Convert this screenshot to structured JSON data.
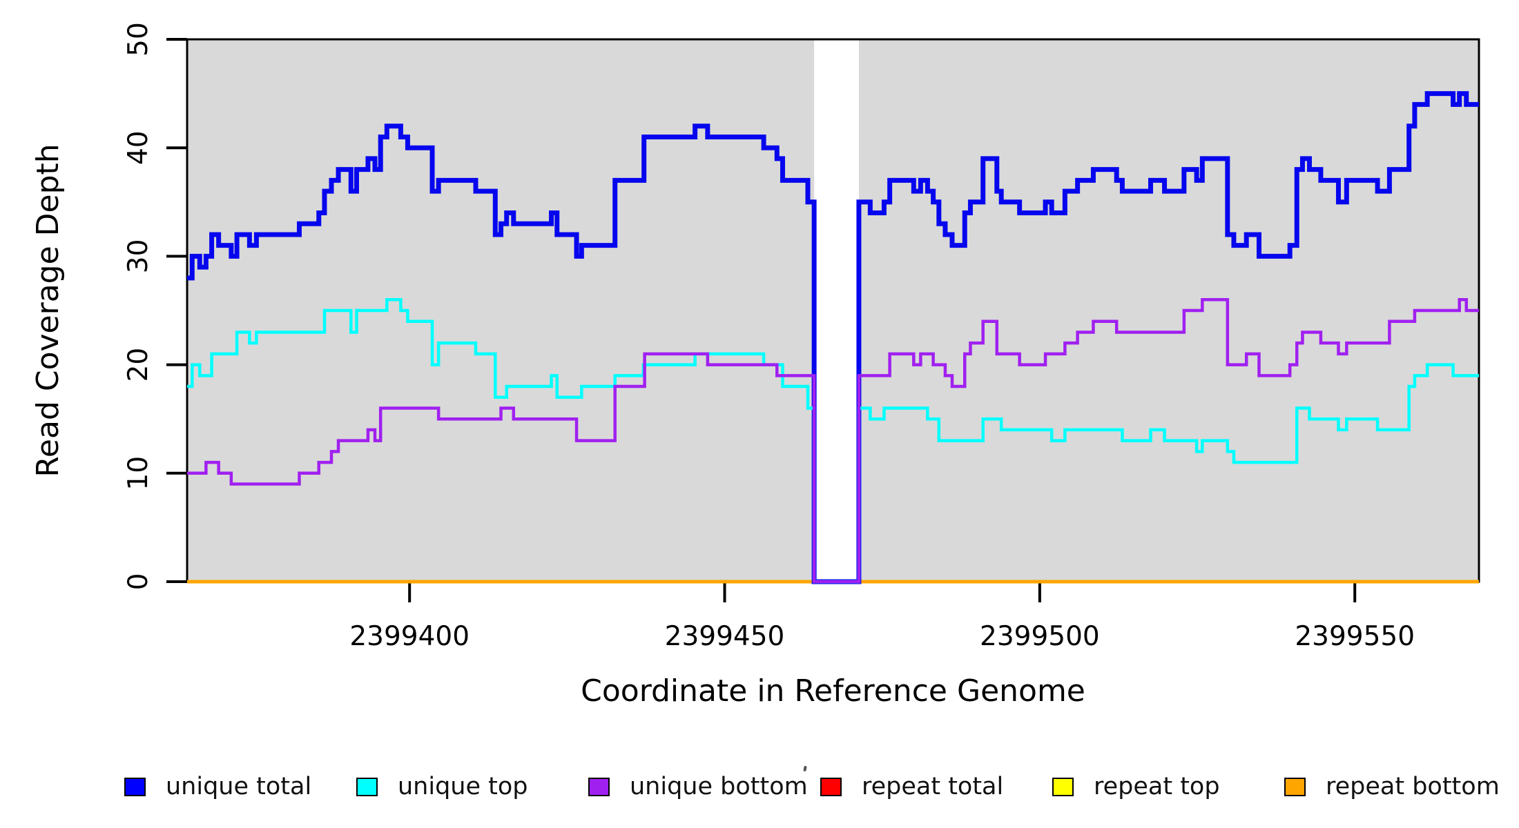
{
  "figure": {
    "title": "",
    "x_axis_label": "Coordinate in Reference Genome",
    "y_axis_label": "Read Coverage Depth"
  },
  "chart_data": {
    "type": "line",
    "subtype": "step",
    "title": "",
    "xlabel": "Coordinate in Reference Genome",
    "ylabel": "Read Coverage Depth",
    "xlim": [
      2399364.7,
      2399569.7
    ],
    "ylim": [
      0,
      50
    ],
    "x_ticks": [
      2399400,
      2399450,
      2399500,
      2399550
    ],
    "y_ticks": [
      0,
      10,
      20,
      30,
      40,
      50
    ],
    "grid": false,
    "legend_position": "bottom",
    "plot_background_color": "#d9d9d9",
    "page_background_color": "#ffffff",
    "uncovered_gap": {
      "x_start": 2399464.2,
      "x_end": 2399471.3,
      "color": "#ffffff"
    },
    "axis_color": "#000000",
    "series": [
      {
        "name": "repeat total",
        "color": "#ff0000",
        "line_width": 4.5,
        "steps": [
          [
            2399364.7,
            0
          ]
        ]
      },
      {
        "name": "repeat top",
        "color": "#ffff00",
        "line_width": 4.5,
        "steps": [
          [
            2399364.7,
            0
          ]
        ]
      },
      {
        "name": "repeat bottom",
        "color": "#ffa500",
        "line_width": 5,
        "steps": [
          [
            2399364.7,
            0
          ]
        ]
      },
      {
        "name": "unique total",
        "color": "#0606ee",
        "line_width": 7,
        "steps": [
          [
            2399364.7,
            28
          ],
          [
            2399365.5,
            30
          ],
          [
            2399366.7,
            29
          ],
          [
            2399367.7,
            30
          ],
          [
            2399368.6,
            32
          ],
          [
            2399369.7,
            31
          ],
          [
            2399371.7,
            30
          ],
          [
            2399372.6,
            32
          ],
          [
            2399374.6,
            31
          ],
          [
            2399375.7,
            32
          ],
          [
            2399382.5,
            33
          ],
          [
            2399385.6,
            34
          ],
          [
            2399386.5,
            36
          ],
          [
            2399387.6,
            37
          ],
          [
            2399388.7,
            38
          ],
          [
            2399390.7,
            36
          ],
          [
            2399391.6,
            38
          ],
          [
            2399393.4,
            39
          ],
          [
            2399394.5,
            38
          ],
          [
            2399395.4,
            41
          ],
          [
            2399396.4,
            42
          ],
          [
            2399398.6,
            41
          ],
          [
            2399399.7,
            40
          ],
          [
            2399403.6,
            36
          ],
          [
            2399404.6,
            37
          ],
          [
            2399410.5,
            36
          ],
          [
            2399413.6,
            32
          ],
          [
            2399414.5,
            33
          ],
          [
            2399415.4,
            34
          ],
          [
            2399416.5,
            33
          ],
          [
            2399422.5,
            34
          ],
          [
            2399423.4,
            32
          ],
          [
            2399426.5,
            30
          ],
          [
            2399427.3,
            31
          ],
          [
            2399432.6,
            37
          ],
          [
            2399437.2,
            41
          ],
          [
            2399445.3,
            42
          ],
          [
            2399447.3,
            41
          ],
          [
            2399456.2,
            40
          ],
          [
            2399458.3,
            39
          ],
          [
            2399459.2,
            37
          ],
          [
            2399463.2,
            35
          ],
          [
            2399464.2,
            0
          ],
          [
            2399471.3,
            35
          ],
          [
            2399473.1,
            34
          ],
          [
            2399475.3,
            35
          ],
          [
            2399476.2,
            37
          ],
          [
            2399480.0,
            36
          ],
          [
            2399481.1,
            37
          ],
          [
            2399482.2,
            36
          ],
          [
            2399483.1,
            35
          ],
          [
            2399484.0,
            33
          ],
          [
            2399485.0,
            32
          ],
          [
            2399486.1,
            31
          ],
          [
            2399488.1,
            34
          ],
          [
            2399489.0,
            35
          ],
          [
            2399491.0,
            39
          ],
          [
            2399493.2,
            36
          ],
          [
            2399493.9,
            35
          ],
          [
            2399496.8,
            34
          ],
          [
            2399500.9,
            35
          ],
          [
            2399501.9,
            34
          ],
          [
            2399504.0,
            36
          ],
          [
            2399506.0,
            37
          ],
          [
            2399508.5,
            38
          ],
          [
            2399512.2,
            37
          ],
          [
            2399513.1,
            36
          ],
          [
            2399517.6,
            37
          ],
          [
            2399519.8,
            36
          ],
          [
            2399522.9,
            38
          ],
          [
            2399524.9,
            37
          ],
          [
            2399525.8,
            39
          ],
          [
            2399529.8,
            32
          ],
          [
            2399530.8,
            31
          ],
          [
            2399532.8,
            32
          ],
          [
            2399534.8,
            30
          ],
          [
            2399539.7,
            31
          ],
          [
            2399540.8,
            38
          ],
          [
            2399541.7,
            39
          ],
          [
            2399542.8,
            38
          ],
          [
            2399544.6,
            37
          ],
          [
            2399547.4,
            35
          ],
          [
            2399548.7,
            37
          ],
          [
            2399553.6,
            36
          ],
          [
            2399555.5,
            38
          ],
          [
            2399558.6,
            42
          ],
          [
            2399559.5,
            44
          ],
          [
            2399561.5,
            45
          ],
          [
            2399565.6,
            44
          ],
          [
            2399566.6,
            45
          ],
          [
            2399567.7,
            44
          ]
        ]
      },
      {
        "name": "unique top",
        "color": "#00ffff",
        "line_width": 4.5,
        "steps": [
          [
            2399364.7,
            18
          ],
          [
            2399365.5,
            20
          ],
          [
            2399366.7,
            19
          ],
          [
            2399368.6,
            21
          ],
          [
            2399372.6,
            23
          ],
          [
            2399374.6,
            22
          ],
          [
            2399375.7,
            23
          ],
          [
            2399386.5,
            25
          ],
          [
            2399390.7,
            23
          ],
          [
            2399391.6,
            25
          ],
          [
            2399396.4,
            26
          ],
          [
            2399398.6,
            25
          ],
          [
            2399399.7,
            24
          ],
          [
            2399403.6,
            20
          ],
          [
            2399404.6,
            22
          ],
          [
            2399410.5,
            21
          ],
          [
            2399413.6,
            17
          ],
          [
            2399415.4,
            18
          ],
          [
            2399422.5,
            19
          ],
          [
            2399423.4,
            17
          ],
          [
            2399427.3,
            18
          ],
          [
            2399432.6,
            19
          ],
          [
            2399437.1,
            20
          ],
          [
            2399445.3,
            21
          ],
          [
            2399456.2,
            20
          ],
          [
            2399459.2,
            18
          ],
          [
            2399463.2,
            16
          ],
          [
            2399464.2,
            0
          ],
          [
            2399471.3,
            16
          ],
          [
            2399473.1,
            15
          ],
          [
            2399475.3,
            16
          ],
          [
            2399482.2,
            15
          ],
          [
            2399484.0,
            13
          ],
          [
            2399491.0,
            15
          ],
          [
            2399493.9,
            14
          ],
          [
            2399501.9,
            13
          ],
          [
            2399504.0,
            14
          ],
          [
            2399513.1,
            13
          ],
          [
            2399517.6,
            14
          ],
          [
            2399519.8,
            13
          ],
          [
            2399524.9,
            12
          ],
          [
            2399525.8,
            13
          ],
          [
            2399529.8,
            12
          ],
          [
            2399530.8,
            11
          ],
          [
            2399540.8,
            16
          ],
          [
            2399542.8,
            15
          ],
          [
            2399547.4,
            14
          ],
          [
            2399548.7,
            15
          ],
          [
            2399553.6,
            14
          ],
          [
            2399558.6,
            18
          ],
          [
            2399559.5,
            19
          ],
          [
            2399561.5,
            20
          ],
          [
            2399565.6,
            19
          ]
        ]
      },
      {
        "name": "unique bottom",
        "color": "#a020f0",
        "line_width": 4.5,
        "steps": [
          [
            2399364.7,
            10
          ],
          [
            2399367.7,
            11
          ],
          [
            2399369.7,
            10
          ],
          [
            2399371.7,
            9
          ],
          [
            2399382.5,
            10
          ],
          [
            2399385.6,
            11
          ],
          [
            2399387.6,
            12
          ],
          [
            2399388.7,
            13
          ],
          [
            2399393.4,
            14
          ],
          [
            2399394.5,
            13
          ],
          [
            2399395.4,
            16
          ],
          [
            2399404.6,
            15
          ],
          [
            2399414.5,
            16
          ],
          [
            2399416.5,
            15
          ],
          [
            2399426.5,
            13
          ],
          [
            2399432.6,
            18
          ],
          [
            2399437.3,
            21
          ],
          [
            2399447.3,
            20
          ],
          [
            2399458.3,
            19
          ],
          [
            2399464.2,
            0
          ],
          [
            2399471.3,
            19
          ],
          [
            2399476.2,
            21
          ],
          [
            2399480.0,
            20
          ],
          [
            2399481.1,
            21
          ],
          [
            2399483.1,
            20
          ],
          [
            2399485.0,
            19
          ],
          [
            2399486.1,
            18
          ],
          [
            2399488.1,
            21
          ],
          [
            2399489.0,
            22
          ],
          [
            2399491.0,
            24
          ],
          [
            2399493.2,
            21
          ],
          [
            2399496.8,
            20
          ],
          [
            2399500.9,
            21
          ],
          [
            2399504.0,
            22
          ],
          [
            2399506.0,
            23
          ],
          [
            2399508.5,
            24
          ],
          [
            2399512.2,
            23
          ],
          [
            2399522.9,
            25
          ],
          [
            2399525.8,
            26
          ],
          [
            2399529.8,
            20
          ],
          [
            2399532.8,
            21
          ],
          [
            2399534.8,
            19
          ],
          [
            2399539.7,
            20
          ],
          [
            2399540.8,
            22
          ],
          [
            2399541.7,
            23
          ],
          [
            2399544.6,
            22
          ],
          [
            2399547.4,
            21
          ],
          [
            2399548.7,
            22
          ],
          [
            2399555.5,
            24
          ],
          [
            2399559.5,
            25
          ],
          [
            2399566.6,
            26
          ],
          [
            2399567.7,
            25
          ]
        ]
      }
    ]
  },
  "legend": {
    "items": [
      {
        "label": "unique total",
        "color": "#0000ff"
      },
      {
        "label": "unique top",
        "color": "#00ffff"
      },
      {
        "label": "unique bottom",
        "color": "#a020f0"
      },
      {
        "label": "repeat total",
        "color": "#ff0000"
      },
      {
        "label": "repeat top",
        "color": "#ffff00"
      },
      {
        "label": "repeat bottom",
        "color": "#ffa500"
      }
    ]
  }
}
